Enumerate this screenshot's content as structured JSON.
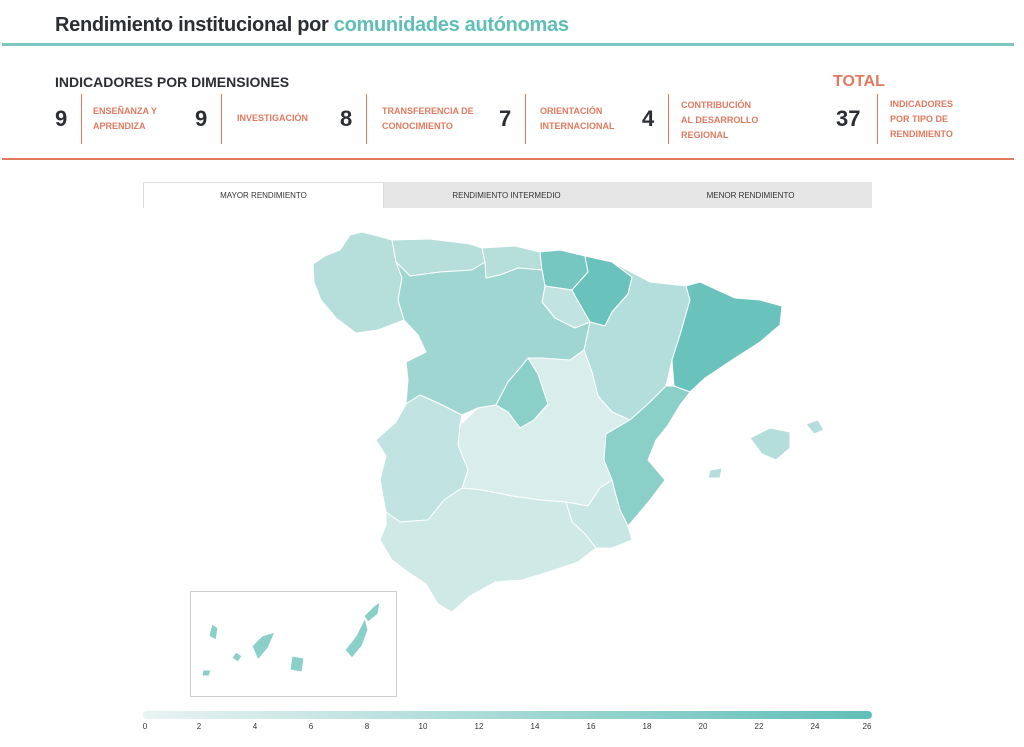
{
  "header": {
    "title_main": "Rendimiento institucional por",
    "title_accent": "comunidades autónomas"
  },
  "indicators": {
    "section_title": "INDICADORES POR DIMENSIONES",
    "items": [
      {
        "value": "9",
        "label_line1": "ENSEÑANZA Y",
        "label_line2": "APRENDIZA",
        "label_line3": ""
      },
      {
        "value": "9",
        "label_line1": "INVESTIGACIÓN",
        "label_line2": "",
        "label_line3": ""
      },
      {
        "value": "8",
        "label_line1": "TRANSFERENCIA DE",
        "label_line2": "CONOCIMIENTO",
        "label_line3": ""
      },
      {
        "value": "7",
        "label_line1": "ORIENTACIÓN",
        "label_line2": "INTERNACIONAL",
        "label_line3": ""
      },
      {
        "value": "4",
        "label_line1": "CONTRIBUCIÓN",
        "label_line2": "AL DESARROLLO",
        "label_line3": "REGIONAL"
      }
    ],
    "total": {
      "title": "TOTAL",
      "value": "37",
      "label_line1": "INDICADORES",
      "label_line2": "POR TIPO DE",
      "label_line3": "RENDIMIENTO"
    }
  },
  "tabs": [
    {
      "label": "MAYOR RENDIMIENTO",
      "active": true
    },
    {
      "label": "RENDIMIENTO INTERMEDIO",
      "active": false
    },
    {
      "label": "MENOR RENDIMIENTO",
      "active": false
    }
  ],
  "colors": {
    "accent_teal": "#5fbfb7",
    "accent_red": "#e07a5f",
    "scale_low": "#e9f3f2",
    "scale_high": "#62bfb8"
  },
  "map": {
    "value_min": 0,
    "value_max": 26,
    "regions": [
      {
        "name": "Galicia",
        "level": 0.38
      },
      {
        "name": "Asturias",
        "level": 0.38
      },
      {
        "name": "Cantabria",
        "level": 0.38
      },
      {
        "name": "País Vasco",
        "level": 0.85
      },
      {
        "name": "Navarra",
        "level": 0.95
      },
      {
        "name": "La Rioja",
        "level": 0.3
      },
      {
        "name": "Castilla y León",
        "level": 0.55
      },
      {
        "name": "Aragón",
        "level": 0.4
      },
      {
        "name": "Cataluña",
        "level": 0.95
      },
      {
        "name": "Comunidad de Madrid",
        "level": 0.7
      },
      {
        "name": "Castilla-La Mancha",
        "level": 0.12
      },
      {
        "name": "Extremadura",
        "level": 0.3
      },
      {
        "name": "Comunidad Valenciana",
        "level": 0.7
      },
      {
        "name": "Región de Murcia",
        "level": 0.25
      },
      {
        "name": "Andalucía",
        "level": 0.2
      },
      {
        "name": "Islas Baleares",
        "level": 0.4
      },
      {
        "name": "Canarias",
        "level": 0.7
      }
    ]
  },
  "legend": {
    "ticks": [
      "0",
      "2",
      "4",
      "6",
      "8",
      "10",
      "12",
      "14",
      "16",
      "18",
      "20",
      "22",
      "24",
      "26"
    ]
  }
}
